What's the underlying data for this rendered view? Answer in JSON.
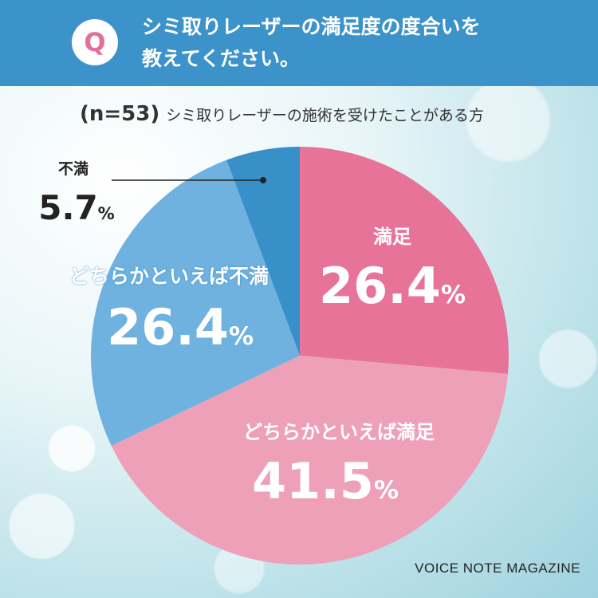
{
  "header": {
    "badge": "Q",
    "question_line1": "シミ取りレーザーの満足度の度合いを",
    "question_line2": "教えてください。"
  },
  "subtitle": {
    "n_label": "(n=53)",
    "description": "シミ取りレーザーの施術を受けたことがある方"
  },
  "chart_data": {
    "type": "pie",
    "start": "12 o'clock",
    "direction": "clockwise",
    "slices": [
      {
        "label": "満足",
        "value": 26.4,
        "display": "26.4",
        "color": "#e87399"
      },
      {
        "label": "どちらかといえば満足",
        "value": 41.5,
        "display": "41.5",
        "color": "#eea0b9"
      },
      {
        "label": "どちらかといえば不満",
        "value": 26.4,
        "display": "26.4",
        "color": "#6fb1df"
      },
      {
        "label": "不満",
        "value": 5.7,
        "display": "5.7",
        "color": "#3790c8"
      }
    ],
    "unit": "%"
  },
  "credit": "VOICE NOTE MAGAZINE"
}
